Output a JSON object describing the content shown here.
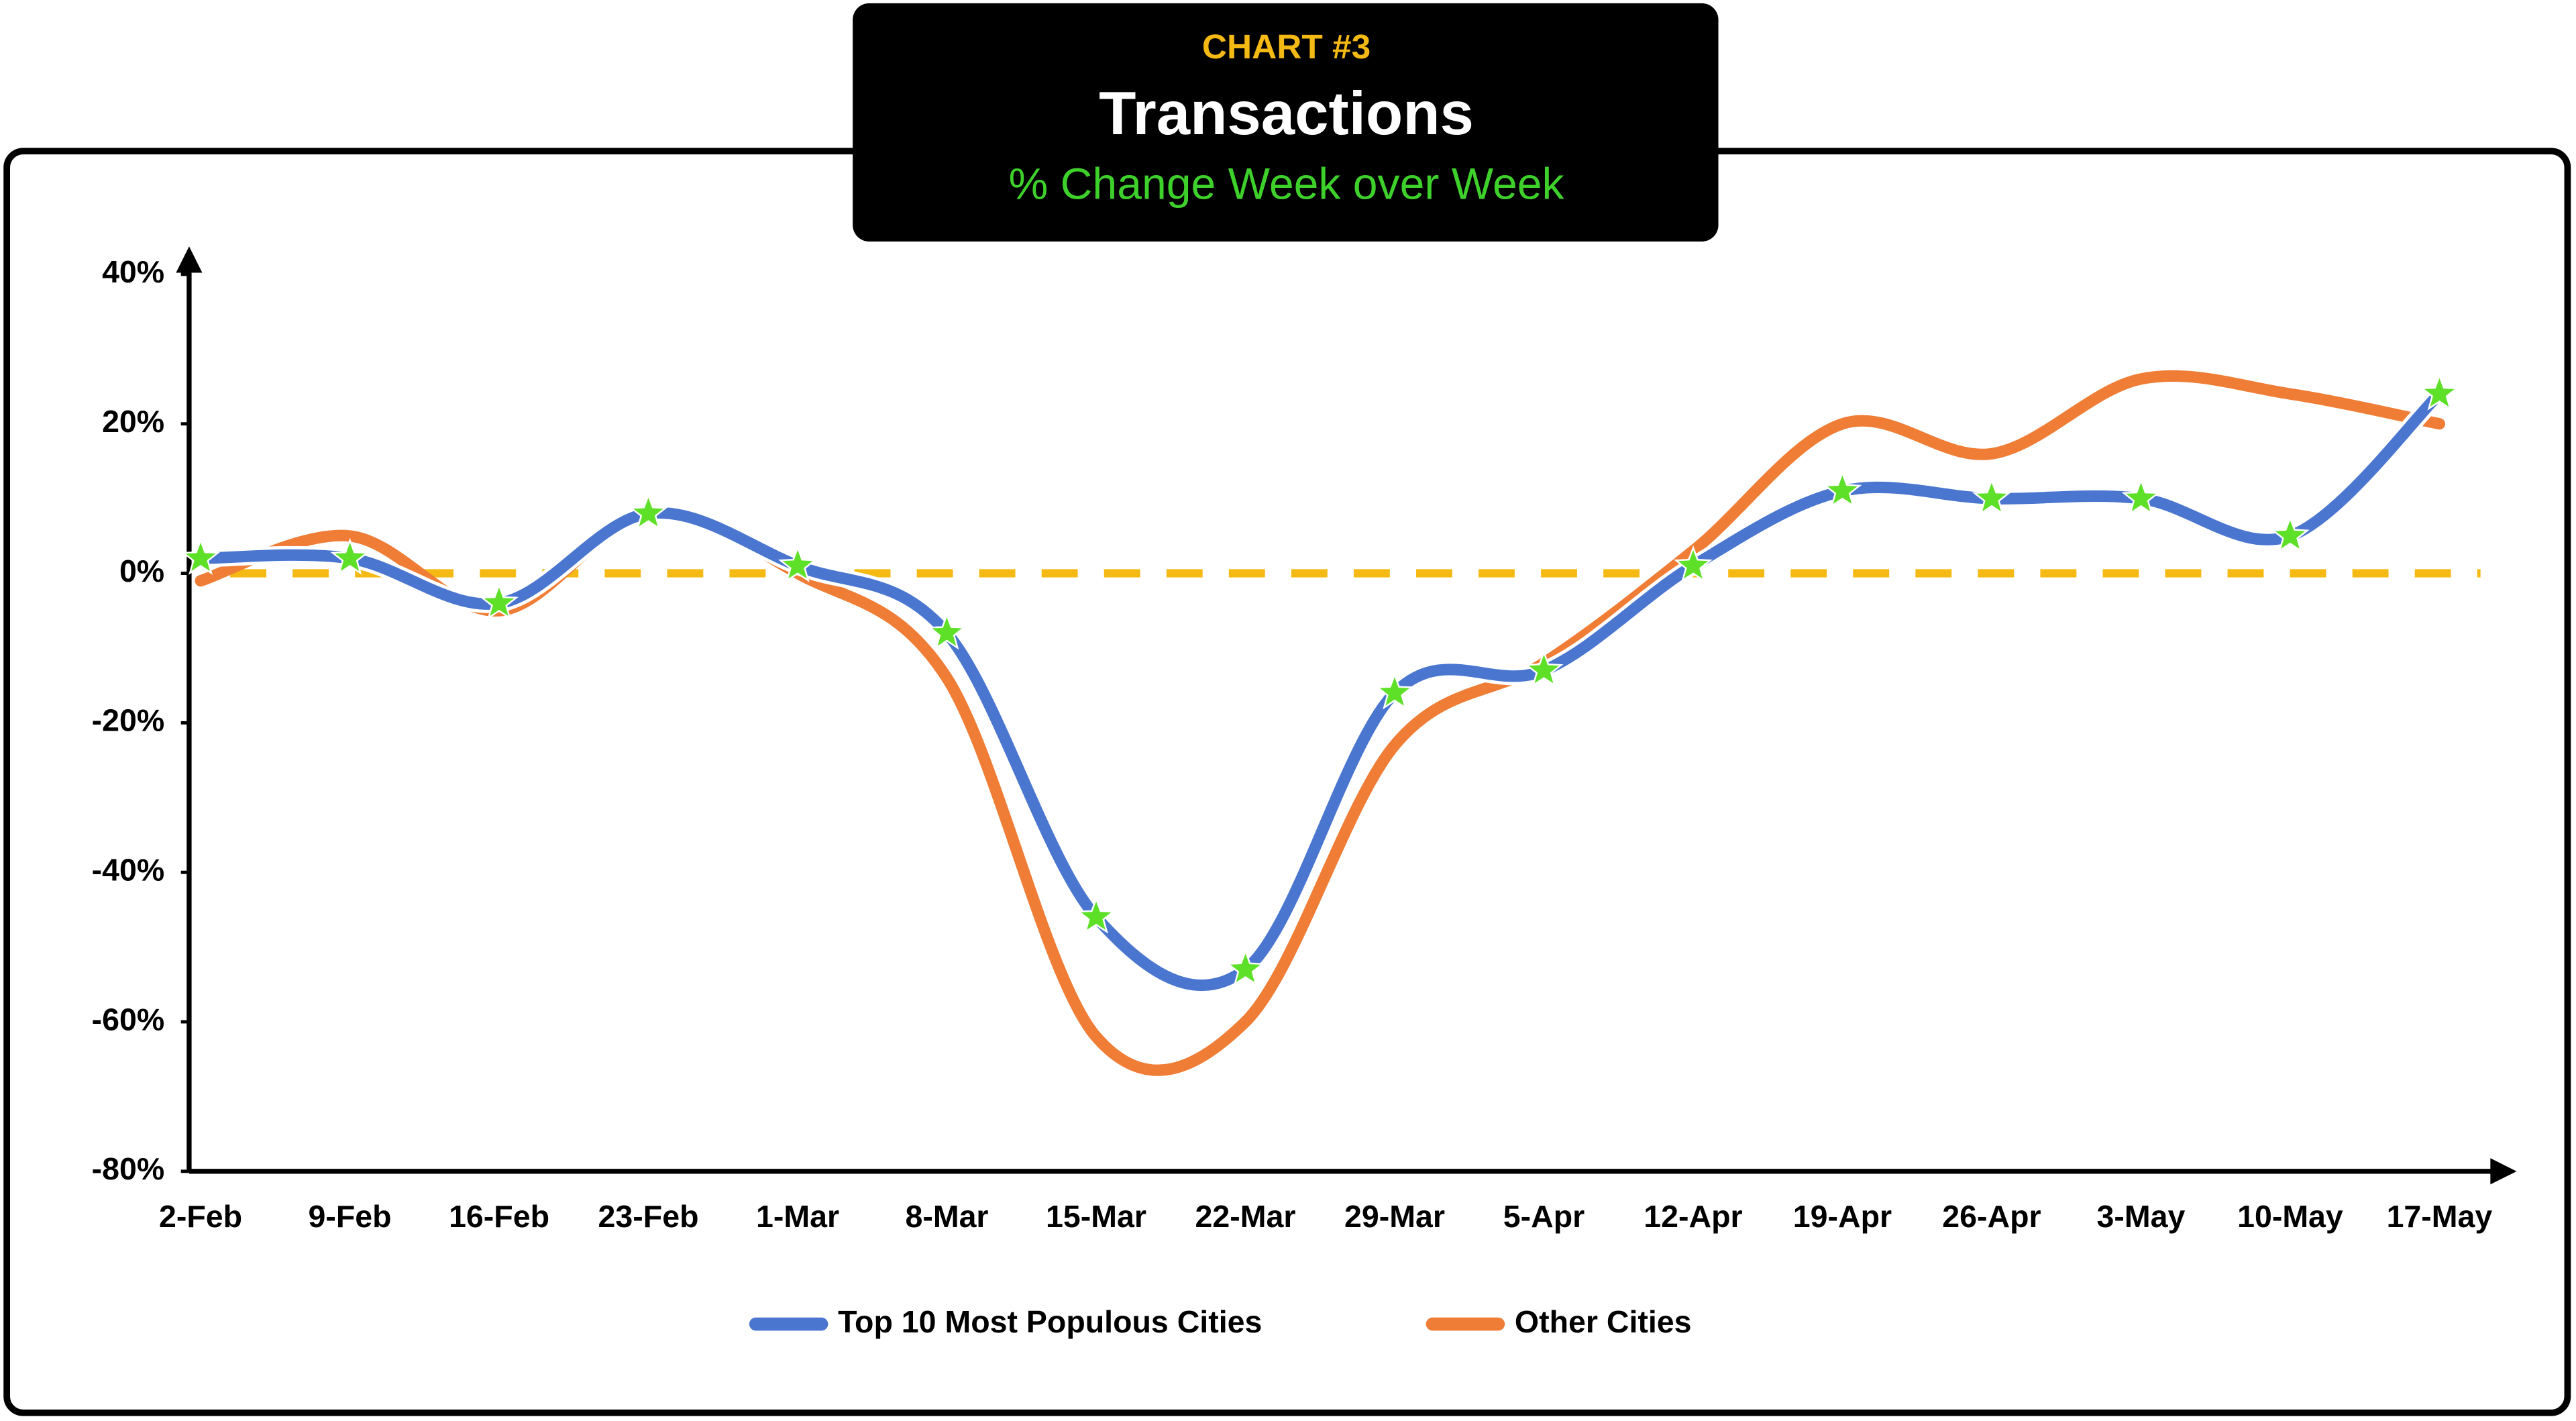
{
  "chart_data": {
    "type": "line",
    "header": "CHART #3",
    "title": "Transactions",
    "subtitle": "% Change Week over Week",
    "categories": [
      "2-Feb",
      "9-Feb",
      "16-Feb",
      "23-Feb",
      "1-Mar",
      "8-Mar",
      "15-Mar",
      "22-Mar",
      "29-Mar",
      "5-Apr",
      "12-Apr",
      "19-Apr",
      "26-Apr",
      "3-May",
      "10-May",
      "17-May"
    ],
    "series": [
      {
        "name": "Top 10 Most Populous Cities",
        "color": "#4a76d0",
        "marker_color": "#5ee028",
        "values": [
          2,
          2,
          -4,
          8,
          1,
          -8,
          -46,
          -53,
          -16,
          -13,
          1,
          11,
          10,
          10,
          5,
          24
        ]
      },
      {
        "name": "Other Cities",
        "color": "#ef7d35",
        "values": [
          -1,
          5,
          -5,
          8,
          0,
          -14,
          -62,
          -60,
          -23,
          -12,
          3,
          20,
          16,
          26,
          24,
          20
        ]
      }
    ],
    "ylim": [
      -80,
      40
    ],
    "yticks": [
      {
        "value": -80,
        "label": "-80%"
      },
      {
        "value": -60,
        "label": "-60%"
      },
      {
        "value": -40,
        "label": "-40%"
      },
      {
        "value": -20,
        "label": "-20%"
      },
      {
        "value": 0,
        "label": "0%"
      },
      {
        "value": 20,
        "label": "20%"
      },
      {
        "value": 40,
        "label": "40%"
      }
    ],
    "reference_line": {
      "value": 0,
      "color": "#f5b914"
    },
    "legend": "bottom",
    "smooth": true
  }
}
